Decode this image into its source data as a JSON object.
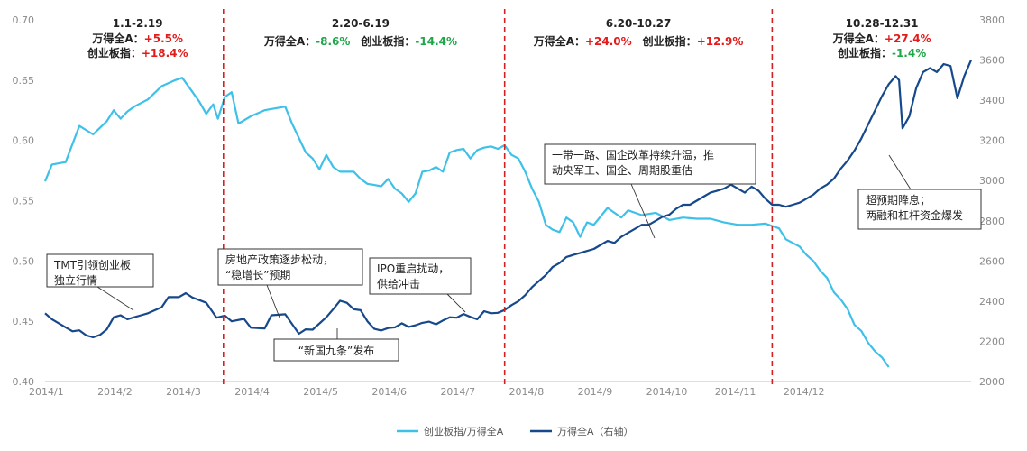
{
  "chart_data": {
    "type": "line",
    "x_ticks": [
      "2014/1",
      "2014/2",
      "2014/3",
      "2014/4",
      "2014/5",
      "2014/6",
      "2014/7",
      "2014/8",
      "2014/9",
      "2014/10",
      "2014/11",
      "2014/12"
    ],
    "y_left": {
      "ylim": [
        0.4,
        0.7
      ],
      "ticks": [
        "0.40",
        "0.45",
        "0.50",
        "0.55",
        "0.60",
        "0.65",
        "0.70"
      ]
    },
    "y_right": {
      "ylim": [
        2000,
        3800
      ],
      "ticks": [
        "2000",
        "2200",
        "2400",
        "2600",
        "2800",
        "3000",
        "3200",
        "3400",
        "3600",
        "3800"
      ]
    },
    "colors": {
      "ratio": "#3ec1e8",
      "wind": "#16488c",
      "divider": "#d42020",
      "up": "#e41b1b",
      "down": "#1fa84a"
    },
    "series": [
      {
        "name": "创业板指/万得全A",
        "axis": "left",
        "points": [
          [
            0,
            0.566
          ],
          [
            0.1,
            0.58
          ],
          [
            0.3,
            0.582
          ],
          [
            0.5,
            0.612
          ],
          [
            0.7,
            0.605
          ],
          [
            0.9,
            0.616
          ],
          [
            1.0,
            0.625
          ],
          [
            1.1,
            0.618
          ],
          [
            1.2,
            0.624
          ],
          [
            1.3,
            0.628
          ],
          [
            1.5,
            0.634
          ],
          [
            1.7,
            0.645
          ],
          [
            1.9,
            0.65
          ],
          [
            2.0,
            0.652
          ],
          [
            2.15,
            0.64
          ],
          [
            2.25,
            0.632
          ],
          [
            2.35,
            0.622
          ],
          [
            2.45,
            0.63
          ],
          [
            2.52,
            0.618
          ],
          [
            2.62,
            0.636
          ],
          [
            2.72,
            0.64
          ],
          [
            2.82,
            0.614
          ],
          [
            3.0,
            0.62
          ],
          [
            3.2,
            0.625
          ],
          [
            3.5,
            0.628
          ],
          [
            3.6,
            0.614
          ],
          [
            3.7,
            0.602
          ],
          [
            3.8,
            0.59
          ],
          [
            3.9,
            0.585
          ],
          [
            4.0,
            0.576
          ],
          [
            4.1,
            0.588
          ],
          [
            4.2,
            0.578
          ],
          [
            4.3,
            0.574
          ],
          [
            4.5,
            0.574
          ],
          [
            4.6,
            0.568
          ],
          [
            4.7,
            0.564
          ],
          [
            4.8,
            0.563
          ],
          [
            4.9,
            0.562
          ],
          [
            5.0,
            0.568
          ],
          [
            5.1,
            0.56
          ],
          [
            5.2,
            0.556
          ],
          [
            5.3,
            0.549
          ],
          [
            5.4,
            0.556
          ],
          [
            5.5,
            0.574
          ],
          [
            5.6,
            0.575
          ],
          [
            5.7,
            0.578
          ],
          [
            5.8,
            0.574
          ],
          [
            5.9,
            0.59
          ],
          [
            6.0,
            0.592
          ],
          [
            6.1,
            0.593
          ],
          [
            6.2,
            0.585
          ],
          [
            6.3,
            0.592
          ],
          [
            6.4,
            0.594
          ],
          [
            6.5,
            0.595
          ],
          [
            6.6,
            0.593
          ],
          [
            6.7,
            0.596
          ],
          [
            6.8,
            0.588
          ],
          [
            6.9,
            0.585
          ],
          [
            7.0,
            0.574
          ],
          [
            7.1,
            0.56
          ],
          [
            7.2,
            0.549
          ],
          [
            7.3,
            0.53
          ],
          [
            7.4,
            0.526
          ],
          [
            7.5,
            0.524
          ],
          [
            7.6,
            0.536
          ],
          [
            7.7,
            0.532
          ],
          [
            7.8,
            0.52
          ],
          [
            7.9,
            0.532
          ],
          [
            8.0,
            0.53
          ],
          [
            8.2,
            0.544
          ],
          [
            8.3,
            0.54
          ],
          [
            8.4,
            0.536
          ],
          [
            8.5,
            0.542
          ],
          [
            8.6,
            0.54
          ],
          [
            8.7,
            0.538
          ],
          [
            8.9,
            0.54
          ],
          [
            9.1,
            0.534
          ],
          [
            9.3,
            0.536
          ],
          [
            9.5,
            0.535
          ],
          [
            9.7,
            0.535
          ],
          [
            9.9,
            0.532
          ],
          [
            10.1,
            0.53
          ],
          [
            10.3,
            0.53
          ],
          [
            10.5,
            0.531
          ],
          [
            10.7,
            0.527
          ],
          [
            10.8,
            0.518
          ],
          [
            10.9,
            0.515
          ],
          [
            11.0,
            0.512
          ],
          [
            11.1,
            0.505
          ],
          [
            11.2,
            0.5
          ],
          [
            11.3,
            0.492
          ],
          [
            11.4,
            0.486
          ],
          [
            11.5,
            0.474
          ],
          [
            11.6,
            0.468
          ],
          [
            11.7,
            0.46
          ],
          [
            11.8,
            0.447
          ],
          [
            11.9,
            0.442
          ],
          [
            12.0,
            0.432
          ],
          [
            12.1,
            0.425
          ],
          [
            12.2,
            0.42
          ],
          [
            12.3,
            0.412
          ]
        ]
      },
      {
        "name": "万得全A（右轴）",
        "axis": "right",
        "points": [
          [
            0,
            2340
          ],
          [
            0.1,
            2310
          ],
          [
            0.3,
            2270
          ],
          [
            0.4,
            2250
          ],
          [
            0.5,
            2255
          ],
          [
            0.6,
            2230
          ],
          [
            0.7,
            2220
          ],
          [
            0.8,
            2232
          ],
          [
            0.9,
            2260
          ],
          [
            1.0,
            2320
          ],
          [
            1.1,
            2330
          ],
          [
            1.2,
            2310
          ],
          [
            1.3,
            2320
          ],
          [
            1.4,
            2330
          ],
          [
            1.5,
            2340
          ],
          [
            1.7,
            2370
          ],
          [
            1.8,
            2420
          ],
          [
            1.95,
            2420
          ],
          [
            2.05,
            2440
          ],
          [
            2.15,
            2418
          ],
          [
            2.35,
            2392
          ],
          [
            2.5,
            2318
          ],
          [
            2.62,
            2328
          ],
          [
            2.72,
            2300
          ],
          [
            2.9,
            2312
          ],
          [
            3.0,
            2268
          ],
          [
            3.2,
            2264
          ],
          [
            3.3,
            2330
          ],
          [
            3.5,
            2335
          ],
          [
            3.7,
            2238
          ],
          [
            3.8,
            2260
          ],
          [
            3.9,
            2258
          ],
          [
            4.1,
            2320
          ],
          [
            4.2,
            2360
          ],
          [
            4.3,
            2402
          ],
          [
            4.4,
            2392
          ],
          [
            4.5,
            2360
          ],
          [
            4.6,
            2355
          ],
          [
            4.7,
            2300
          ],
          [
            4.8,
            2262
          ],
          [
            4.9,
            2254
          ],
          [
            5.0,
            2266
          ],
          [
            5.1,
            2270
          ],
          [
            5.2,
            2290
          ],
          [
            5.3,
            2272
          ],
          [
            5.4,
            2280
          ],
          [
            5.5,
            2292
          ],
          [
            5.6,
            2298
          ],
          [
            5.7,
            2285
          ],
          [
            5.8,
            2304
          ],
          [
            5.9,
            2320
          ],
          [
            6.0,
            2318
          ],
          [
            6.1,
            2336
          ],
          [
            6.2,
            2322
          ],
          [
            6.3,
            2310
          ],
          [
            6.4,
            2350
          ],
          [
            6.5,
            2340
          ],
          [
            6.6,
            2342
          ],
          [
            6.7,
            2356
          ],
          [
            6.8,
            2380
          ],
          [
            6.9,
            2400
          ],
          [
            7.0,
            2430
          ],
          [
            7.1,
            2470
          ],
          [
            7.2,
            2500
          ],
          [
            7.3,
            2530
          ],
          [
            7.4,
            2570
          ],
          [
            7.5,
            2590
          ],
          [
            7.6,
            2620
          ],
          [
            7.7,
            2630
          ],
          [
            7.8,
            2640
          ],
          [
            7.9,
            2650
          ],
          [
            8.0,
            2660
          ],
          [
            8.1,
            2680
          ],
          [
            8.2,
            2700
          ],
          [
            8.3,
            2690
          ],
          [
            8.4,
            2720
          ],
          [
            8.5,
            2740
          ],
          [
            8.6,
            2760
          ],
          [
            8.7,
            2780
          ],
          [
            8.8,
            2780
          ],
          [
            8.9,
            2800
          ],
          [
            9.0,
            2820
          ],
          [
            9.1,
            2830
          ],
          [
            9.2,
            2860
          ],
          [
            9.3,
            2880
          ],
          [
            9.4,
            2880
          ],
          [
            9.5,
            2900
          ],
          [
            9.6,
            2920
          ],
          [
            9.7,
            2940
          ],
          [
            9.8,
            2950
          ],
          [
            9.9,
            2960
          ],
          [
            10.0,
            2980
          ],
          [
            10.1,
            2960
          ],
          [
            10.2,
            2940
          ],
          [
            10.3,
            2970
          ],
          [
            10.4,
            2950
          ],
          [
            10.5,
            2910
          ],
          [
            10.6,
            2880
          ],
          [
            10.7,
            2880
          ],
          [
            10.8,
            2870
          ],
          [
            10.9,
            2880
          ],
          [
            11.0,
            2890
          ],
          [
            11.1,
            2910
          ],
          [
            11.2,
            2930
          ],
          [
            11.3,
            2960
          ],
          [
            11.4,
            2980
          ],
          [
            11.5,
            3010
          ],
          [
            11.6,
            3060
          ],
          [
            11.7,
            3100
          ],
          [
            11.8,
            3150
          ],
          [
            11.9,
            3210
          ],
          [
            12.0,
            3280
          ],
          [
            12.1,
            3350
          ],
          [
            12.2,
            3420
          ],
          [
            12.3,
            3480
          ],
          [
            12.4,
            3520
          ],
          [
            12.45,
            3500
          ],
          [
            12.5,
            3260
          ],
          [
            12.6,
            3320
          ],
          [
            12.7,
            3460
          ],
          [
            12.8,
            3540
          ],
          [
            12.9,
            3560
          ],
          [
            13.0,
            3540
          ],
          [
            13.1,
            3580
          ],
          [
            13.2,
            3570
          ],
          [
            13.3,
            3410
          ],
          [
            13.4,
            3520
          ],
          [
            13.5,
            3600
          ]
        ]
      }
    ],
    "dividers": [
      2.6,
      6.7,
      10.6
    ],
    "periods": [
      {
        "title": "1.1-2.19",
        "lines": [
          {
            "label": "万得全A：",
            "value": "+5.5%",
            "sign": "up"
          },
          {
            "label": "创业板指：",
            "value": "+18.4%",
            "sign": "up"
          }
        ]
      },
      {
        "title": "2.20-6.19",
        "lines": [
          {
            "label": "万得全A：",
            "value": "-8.6%",
            "sign": "down"
          },
          {
            "label": "创业板指：",
            "value": "-14.4%",
            "sign": "down"
          }
        ]
      },
      {
        "title": "6.20-10.27",
        "lines": [
          {
            "label": "万得全A：",
            "value": "+24.0%",
            "sign": "up"
          },
          {
            "label": "创业板指：",
            "value": "+12.9%",
            "sign": "up"
          }
        ]
      },
      {
        "title": "10.28-12.31",
        "lines": [
          {
            "label": "万得全A：",
            "value": "+27.4%",
            "sign": "up"
          },
          {
            "label": "创业板指：",
            "value": "-1.4%",
            "sign": "down"
          }
        ]
      }
    ],
    "annotations": [
      {
        "lines": [
          "TMT引领创业板",
          "独立行情"
        ]
      },
      {
        "lines": [
          "房地产政策逐步松动，",
          "“稳增长”预期"
        ]
      },
      {
        "lines": [
          "“新国九条”发布"
        ]
      },
      {
        "lines": [
          "IPO重启扰动，",
          "供给冲击"
        ]
      },
      {
        "lines": [
          "一带一路、国企改革持续升温，推",
          "动央军工、国企、周期股重估"
        ]
      },
      {
        "lines": [
          "超预期降息；",
          "两融和杠杆资金爆发"
        ]
      }
    ],
    "legend": [
      {
        "label": "创业板指/万得全A",
        "color": "#3ec1e8"
      },
      {
        "label": "万得全A（右轴）",
        "color": "#16488c"
      }
    ]
  }
}
